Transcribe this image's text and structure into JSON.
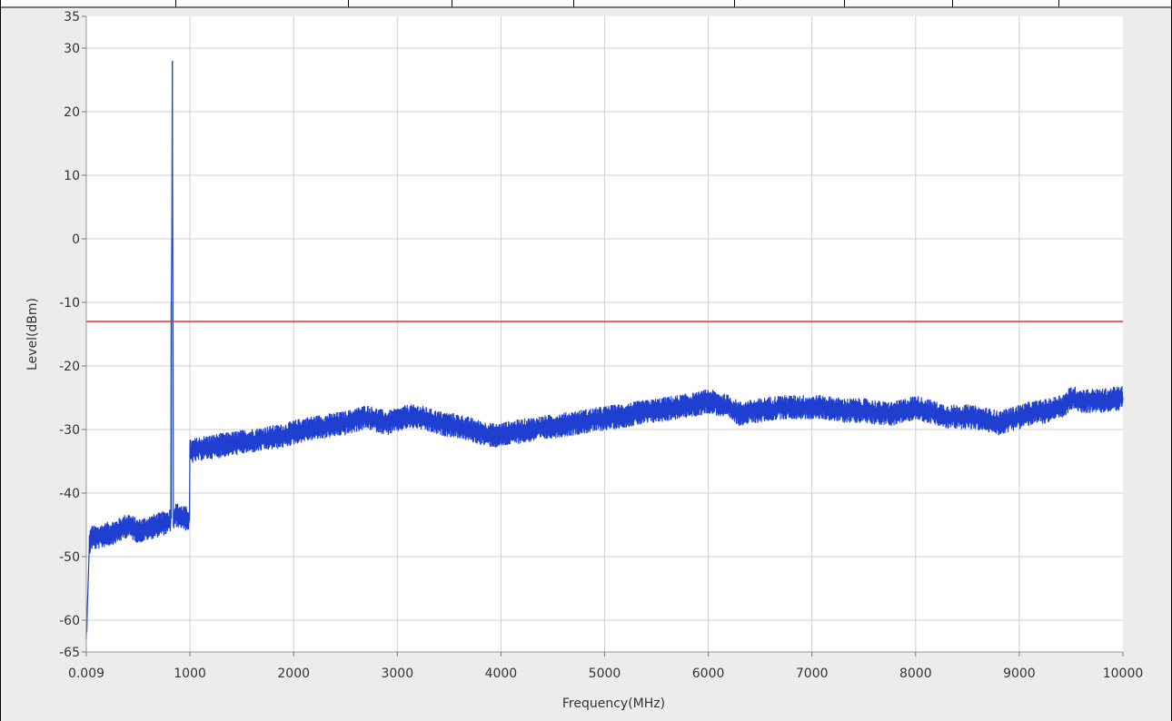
{
  "chart_data": {
    "type": "line",
    "title": "",
    "xlabel": "Frequency(MHz)",
    "ylabel": "Level(dBm)",
    "x_ticks": [
      0.009,
      1000,
      2000,
      3000,
      4000,
      5000,
      6000,
      7000,
      8000,
      9000,
      10000
    ],
    "x_tick_labels": [
      "0.009",
      "1000",
      "2000",
      "3000",
      "4000",
      "5000",
      "6000",
      "7000",
      "8000",
      "9000",
      "10000"
    ],
    "y_ticks": [
      35,
      30,
      20,
      10,
      0,
      -10,
      -20,
      -30,
      -40,
      -50,
      -60,
      -65
    ],
    "y_tick_labels": [
      "35",
      "30",
      "20",
      "10",
      "0",
      "-10",
      "-20",
      "-30",
      "-40",
      "-50",
      "-60",
      "-65"
    ],
    "xlim": [
      0.009,
      10000
    ],
    "ylim": [
      -65,
      35
    ],
    "grid": true,
    "series": [
      {
        "color": "#1f3fd1",
        "x": [
          0.009,
          10,
          30,
          50,
          100,
          200,
          300,
          400,
          500,
          600,
          700,
          800,
          815,
          820,
          825,
          830,
          835,
          840,
          860,
          900,
          950,
          995,
          1000,
          1100,
          1300,
          1500,
          1700,
          1900,
          2100,
          2300,
          2500,
          2700,
          2800,
          2900,
          3000,
          3100,
          3200,
          3400,
          3600,
          3800,
          3950,
          4100,
          4300,
          4500,
          4700,
          4900,
          5100,
          5300,
          5500,
          5700,
          5900,
          6000,
          6100,
          6200,
          6300,
          6500,
          6700,
          6900,
          7100,
          7300,
          7500,
          7700,
          7800,
          7900,
          8000,
          8100,
          8300,
          8500,
          8700,
          8800,
          8900,
          9100,
          9300,
          9450,
          9500,
          9600,
          9800,
          10000
        ],
        "y": [
          -62,
          -58,
          -48,
          -47,
          -47,
          -46.5,
          -46,
          -45,
          -46,
          -45.5,
          -45,
          -44.5,
          -44,
          -10,
          0,
          28,
          -8,
          -44,
          -43.5,
          -43.5,
          -44,
          -44,
          -33.5,
          -33,
          -32.5,
          -32,
          -31.5,
          -31,
          -30,
          -29.5,
          -29,
          -28,
          -28.5,
          -29,
          -28.5,
          -28,
          -28,
          -29,
          -29.5,
          -30.5,
          -31,
          -30.5,
          -30,
          -29.5,
          -29,
          -28.5,
          -28,
          -27.5,
          -27,
          -26.5,
          -26,
          -25.5,
          -26,
          -26.5,
          -27.5,
          -27,
          -26.5,
          -26.5,
          -26.5,
          -27,
          -27,
          -27.5,
          -27.5,
          -27,
          -26.5,
          -27,
          -28,
          -28,
          -28.5,
          -29,
          -28.5,
          -27.5,
          -27,
          -26,
          -25,
          -25.5,
          -25.5,
          -25
        ]
      }
    ],
    "limit_line": {
      "y": -13,
      "color": "#e8302a"
    }
  }
}
